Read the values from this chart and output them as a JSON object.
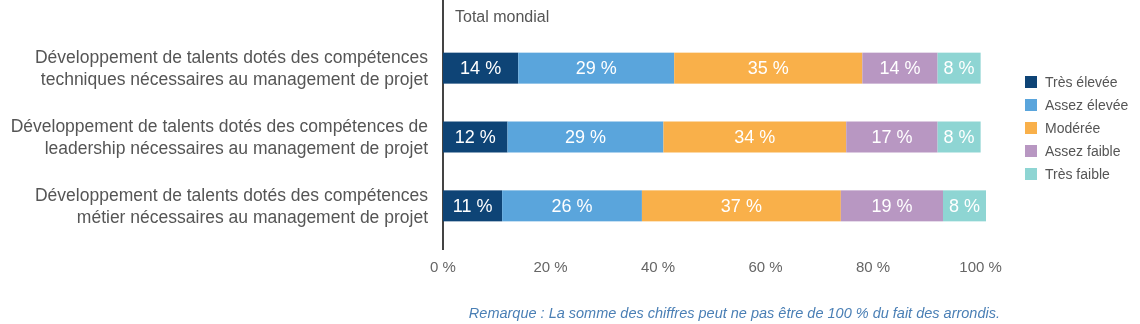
{
  "chart_data": {
    "type": "bar",
    "orientation": "horizontal",
    "stacked": true,
    "title": "Total mondial",
    "categories": [
      "Développement de talents dotés des compétences\ntechniques nécessaires au management de projet",
      "Développement de talents dotés des compétences de\nleadership nécessaires au management de projet",
      "Développement de talents dotés des compétences\nmétier nécessaires au management de projet"
    ],
    "series": [
      {
        "name": "Très élevée",
        "color": "#0e4476",
        "values": [
          14,
          12,
          11
        ],
        "value_labels": [
          "14 %",
          "12 %",
          "11 %"
        ]
      },
      {
        "name": "Assez élevée",
        "color": "#5aa5dc",
        "values": [
          29,
          29,
          26
        ],
        "value_labels": [
          "29 %",
          "29 %",
          "26 %"
        ]
      },
      {
        "name": "Modérée",
        "color": "#f9b04a",
        "values": [
          35,
          34,
          37
        ],
        "value_labels": [
          "35 %",
          "34 %",
          "37 %"
        ]
      },
      {
        "name": "Assez faible",
        "color": "#b897c2",
        "values": [
          14,
          17,
          19
        ],
        "value_labels": [
          "14 %",
          "17 %",
          "19 %"
        ]
      },
      {
        "name": "Très faible",
        "color": "#8ed5d3",
        "values": [
          8,
          8,
          8
        ],
        "value_labels": [
          "8 %",
          "8 %",
          "8 %"
        ]
      }
    ],
    "xlim": [
      0,
      101
    ],
    "xticks": [
      {
        "value": 0,
        "label": "0 %"
      },
      {
        "value": 20,
        "label": "20 %"
      },
      {
        "value": 40,
        "label": "40 %"
      },
      {
        "value": 60,
        "label": "60 %"
      },
      {
        "value": 80,
        "label": "80 %"
      },
      {
        "value": 100,
        "label": "100 %"
      }
    ],
    "grid": false,
    "legend": "right",
    "annotations": [
      "Remarque : La somme des chiffres peut ne pas être de 100 % du fait des arrondis."
    ]
  }
}
